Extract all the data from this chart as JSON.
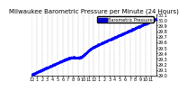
{
  "title": "Milwaukee Barometric Pressure per Minute (24 Hours)",
  "title_fontsize": 5,
  "bg_color": "#ffffff",
  "plot_bg_color": "#ffffff",
  "dot_color": "#0000ff",
  "dot_size": 1.5,
  "legend_color": "#0000cc",
  "xlim": [
    0,
    1440
  ],
  "ylim": [
    29.0,
    30.1
  ],
  "ylabel_fontsize": 3.5,
  "xlabel_fontsize": 3.5,
  "yticks": [
    29.0,
    29.1,
    29.2,
    29.3,
    29.4,
    29.5,
    29.6,
    29.7,
    29.8,
    29.9,
    30.0,
    30.1
  ],
  "xtick_positions": [
    0,
    60,
    120,
    180,
    240,
    300,
    360,
    420,
    480,
    540,
    600,
    660,
    720,
    780,
    840,
    900,
    960,
    1020,
    1080,
    1140,
    1200,
    1260,
    1320,
    1380
  ],
  "xtick_labels": [
    "12",
    "1",
    "2",
    "3",
    "4",
    "5",
    "6",
    "7",
    "8",
    "9",
    "10",
    "11",
    "12",
    "1",
    "2",
    "3",
    "4",
    "5",
    "6",
    "7",
    "8",
    "9",
    "10",
    "11"
  ],
  "vgrid_positions": [
    0,
    60,
    120,
    180,
    240,
    300,
    360,
    420,
    480,
    540,
    600,
    660,
    720,
    780,
    840,
    900,
    960,
    1020,
    1080,
    1140,
    1200,
    1260,
    1320,
    1380,
    1440
  ],
  "grid_color": "#aaaaaa",
  "legend_label": "Barometric Pressure",
  "legend_fontsize": 3.5
}
